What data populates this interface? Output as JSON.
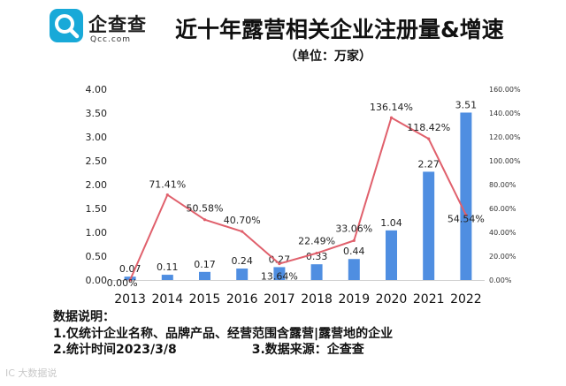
{
  "brand": {
    "name": "企查查",
    "domain": "Qcc.com",
    "logo_icon": "qcc-magnifier-logo-icon",
    "color": "#18a9d8"
  },
  "chart_data": {
    "type": "bar+line",
    "title": "近十年露营相关企业注册量&增速",
    "subtitle": "（单位：万家）",
    "categories": [
      "2013",
      "2014",
      "2015",
      "2016",
      "2017",
      "2018",
      "2019",
      "2020",
      "2021",
      "2022"
    ],
    "series": [
      {
        "name": "注册量（万家）",
        "kind": "bar",
        "axis": "left",
        "color": "#4f8ee1",
        "values": [
          0.07,
          0.11,
          0.17,
          0.24,
          0.27,
          0.33,
          0.44,
          1.04,
          2.27,
          3.51
        ],
        "labels": [
          "0.07",
          "0.11",
          "0.17",
          "0.24",
          "0.27",
          "0.33",
          "0.44",
          "1.04",
          "2.27",
          "3.51"
        ]
      },
      {
        "name": "增速",
        "kind": "line",
        "axis": "right",
        "color": "#e0606c",
        "values": [
          0.0,
          71.41,
          50.58,
          40.7,
          13.64,
          22.49,
          33.06,
          136.14,
          118.42,
          54.54
        ],
        "labels": [
          "0.00%",
          "71.41%",
          "50.58%",
          "40.70%",
          "13.64%",
          "22.49%",
          "33.06%",
          "136.14%",
          "118.42%",
          "54.54%"
        ]
      }
    ],
    "y_left": {
      "min": 0,
      "max": 4,
      "ticks": [
        "0.00",
        "0.50",
        "1.00",
        "1.50",
        "2.00",
        "2.50",
        "3.00",
        "3.50",
        "4.00"
      ]
    },
    "y_right": {
      "min": 0,
      "max": 160,
      "ticks": [
        "0.00%",
        "20.00%",
        "40.00%",
        "60.00%",
        "80.00%",
        "100.00%",
        "120.00%",
        "140.00%",
        "160.00%"
      ]
    },
    "grid": false,
    "legend": "none"
  },
  "notes": {
    "heading": "数据说明：",
    "line1": "1.仅统计企业名称、品牌产品、经营范围含露营|露营地的企业",
    "line2": "2.统计时间2023/3/8",
    "line3": "3.数据来源：企查查"
  },
  "watermark": "IC 大数据说"
}
